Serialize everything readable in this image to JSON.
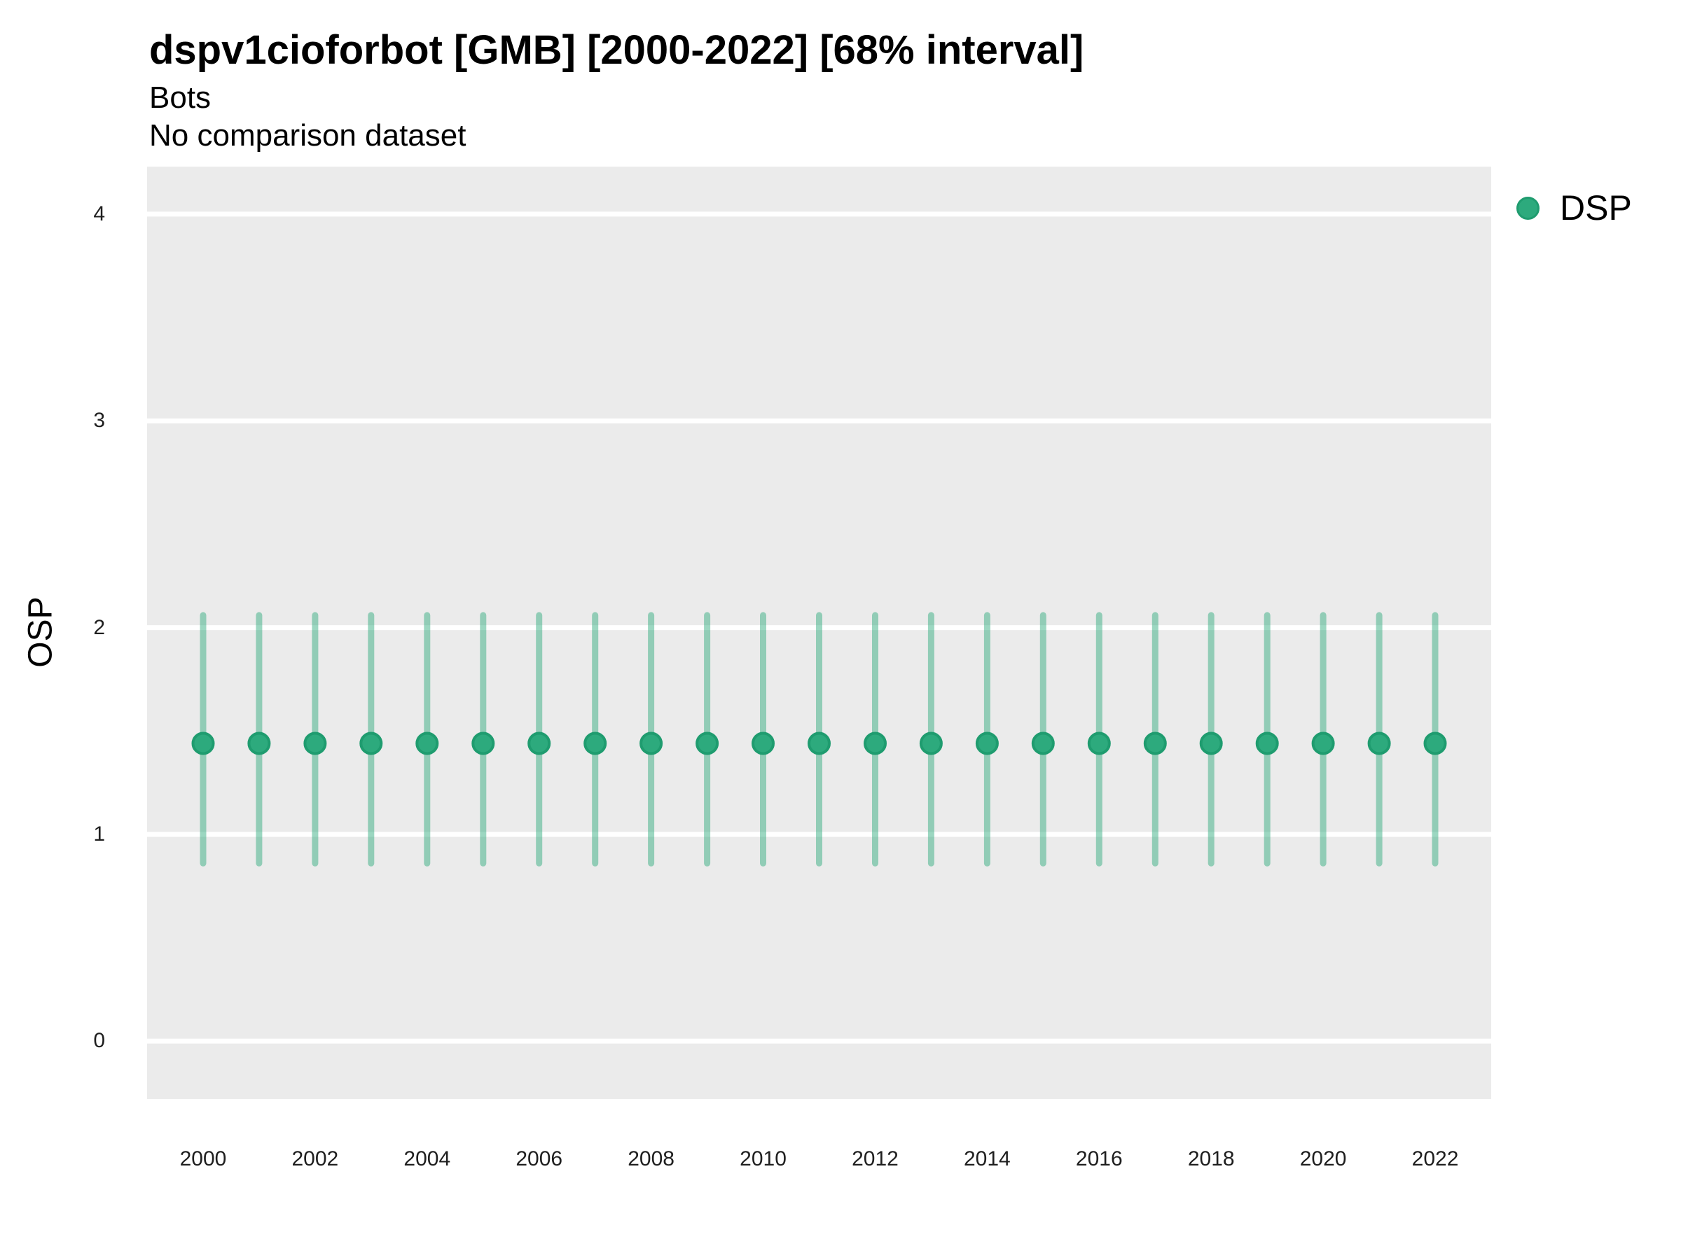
{
  "header": {
    "title": "dspv1cioforbot [GMB] [2000-2022] [68% interval]",
    "subtitle": "Bots",
    "note": "No comparison dataset"
  },
  "colors": {
    "panel_background": "#EBEBEB",
    "grid_line": "#FFFFFF",
    "point_fill": "#2DAA7D",
    "point_stroke": "#1F9C6F",
    "error_bar": "#2DA97C",
    "text": "#000000",
    "tick_text": "#1F1F1F"
  },
  "legend": {
    "position": "right",
    "entries": [
      {
        "label": "DSP",
        "color": "#2DAA7D",
        "swatch": "circle-icon"
      }
    ]
  },
  "chart_data": {
    "type": "scatter",
    "subtype": "pointrange-error-bars",
    "title": "dspv1cioforbot [GMB] [2000-2022] [68% interval]",
    "subtitle": "Bots",
    "note": "No comparison dataset",
    "interval": "68%",
    "xlabel": "",
    "ylabel": "OSP",
    "grid": "major-y-only",
    "legend_position": "right",
    "x_ticks": [
      2000,
      2002,
      2004,
      2006,
      2008,
      2010,
      2012,
      2014,
      2016,
      2018,
      2020,
      2022
    ],
    "y_ticks": [
      0,
      1,
      2,
      3,
      4
    ],
    "xlim": [
      1999,
      2023
    ],
    "ylim": [
      -0.28,
      4.23
    ],
    "series": [
      {
        "name": "DSP",
        "color": "#2DAA7D",
        "x": [
          2000,
          2001,
          2002,
          2003,
          2004,
          2005,
          2006,
          2007,
          2008,
          2009,
          2010,
          2011,
          2012,
          2013,
          2014,
          2015,
          2016,
          2017,
          2018,
          2019,
          2020,
          2021,
          2022
        ],
        "y": [
          1.44,
          1.44,
          1.44,
          1.44,
          1.44,
          1.44,
          1.44,
          1.44,
          1.44,
          1.44,
          1.44,
          1.44,
          1.44,
          1.44,
          1.44,
          1.44,
          1.44,
          1.44,
          1.44,
          1.44,
          1.44,
          1.44,
          1.44
        ],
        "ymin": [
          0.86,
          0.86,
          0.86,
          0.86,
          0.86,
          0.86,
          0.86,
          0.86,
          0.86,
          0.86,
          0.86,
          0.86,
          0.86,
          0.86,
          0.86,
          0.86,
          0.86,
          0.86,
          0.86,
          0.86,
          0.86,
          0.86,
          0.86
        ],
        "ymax": [
          2.06,
          2.06,
          2.06,
          2.06,
          2.06,
          2.06,
          2.06,
          2.06,
          2.06,
          2.06,
          2.06,
          2.06,
          2.06,
          2.06,
          2.06,
          2.06,
          2.06,
          2.06,
          2.06,
          2.06,
          2.06,
          2.06,
          2.06
        ]
      }
    ]
  }
}
